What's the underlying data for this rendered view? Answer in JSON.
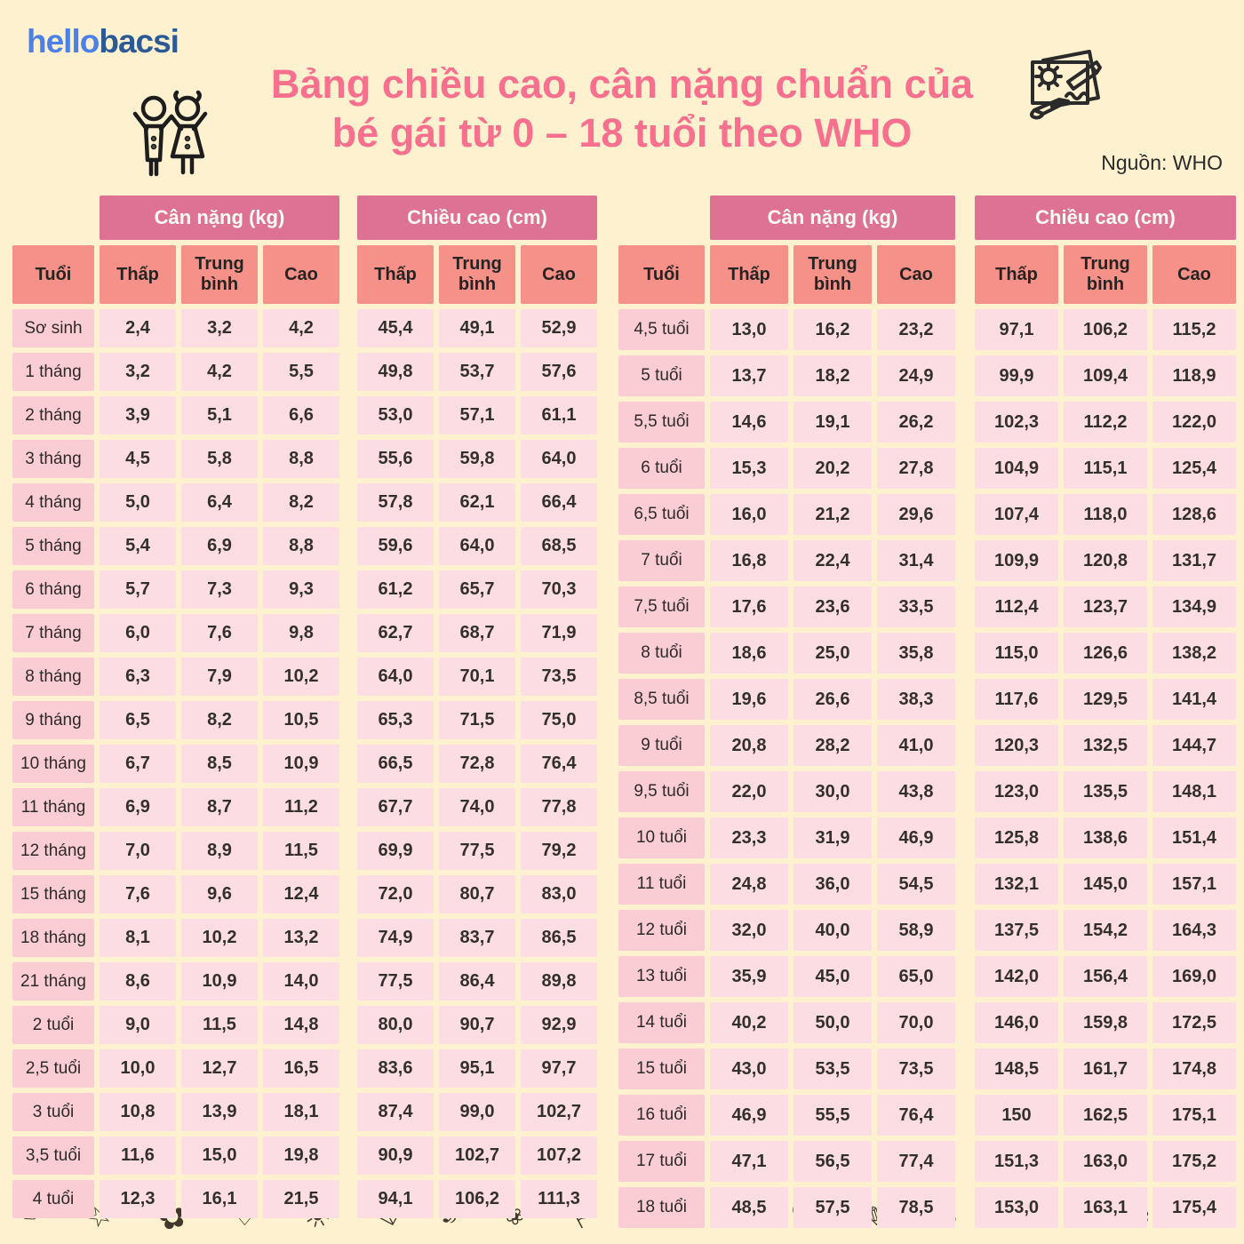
{
  "header": {
    "logo_part1": "hello",
    "logo_part2": "bacsi",
    "title_line1": "Bảng chiều cao, cân nặng chuẩn của",
    "title_line2": "bé gái từ 0 – 18 tuổi theo WHO",
    "source": "Nguồn: WHO"
  },
  "icons": [
    "children-icon",
    "drawing-paper-icon"
  ],
  "palette": {
    "background": "#fdf1d0",
    "title_pink": "#f8708e",
    "group_header": "#de7295",
    "column_header": "#f6918a",
    "age_cell": "#f9cdd3",
    "value_cell": "#fbdde3",
    "logo_light_blue": "#4b80e8",
    "logo_dark_blue": "#2b5a94"
  },
  "columns": {
    "age_label": "Tuổi",
    "weight_group_label": "Cân nặng (kg)",
    "height_group_label": "Chiều cao (cm)",
    "sub_labels": [
      "Thấp",
      "Trung bình",
      "Cao"
    ]
  },
  "tables": [
    {
      "rows": [
        [
          "Sơ sinh",
          "2,4",
          "3,2",
          "4,2",
          "45,4",
          "49,1",
          "52,9"
        ],
        [
          "1 tháng",
          "3,2",
          "4,2",
          "5,5",
          "49,8",
          "53,7",
          "57,6"
        ],
        [
          "2 tháng",
          "3,9",
          "5,1",
          "6,6",
          "53,0",
          "57,1",
          "61,1"
        ],
        [
          "3 tháng",
          "4,5",
          "5,8",
          "8,8",
          "55,6",
          "59,8",
          "64,0"
        ],
        [
          "4 tháng",
          "5,0",
          "6,4",
          "8,2",
          "57,8",
          "62,1",
          "66,4"
        ],
        [
          "5 tháng",
          "5,4",
          "6,9",
          "8,8",
          "59,6",
          "64,0",
          "68,5"
        ],
        [
          "6 tháng",
          "5,7",
          "7,3",
          "9,3",
          "61,2",
          "65,7",
          "70,3"
        ],
        [
          "7 tháng",
          "6,0",
          "7,6",
          "9,8",
          "62,7",
          "68,7",
          "71,9"
        ],
        [
          "8 tháng",
          "6,3",
          "7,9",
          "10,2",
          "64,0",
          "70,1",
          "73,5"
        ],
        [
          "9 tháng",
          "6,5",
          "8,2",
          "10,5",
          "65,3",
          "71,5",
          "75,0"
        ],
        [
          "10 tháng",
          "6,7",
          "8,5",
          "10,9",
          "66,5",
          "72,8",
          "76,4"
        ],
        [
          "11 tháng",
          "6,9",
          "8,7",
          "11,2",
          "67,7",
          "74,0",
          "77,8"
        ],
        [
          "12 tháng",
          "7,0",
          "8,9",
          "11,5",
          "69,9",
          "77,5",
          "79,2"
        ],
        [
          "15 tháng",
          "7,6",
          "9,6",
          "12,4",
          "72,0",
          "80,7",
          "83,0"
        ],
        [
          "18 tháng",
          "8,1",
          "10,2",
          "13,2",
          "74,9",
          "83,7",
          "86,5"
        ],
        [
          "21 tháng",
          "8,6",
          "10,9",
          "14,0",
          "77,5",
          "86,4",
          "89,8"
        ],
        [
          "2 tuổi",
          "9,0",
          "11,5",
          "14,8",
          "80,0",
          "90,7",
          "92,9"
        ],
        [
          "2,5 tuổi",
          "10,0",
          "12,7",
          "16,5",
          "83,6",
          "95,1",
          "97,7"
        ],
        [
          "3 tuổi",
          "10,8",
          "13,9",
          "18,1",
          "87,4",
          "99,0",
          "102,7"
        ],
        [
          "3,5 tuổi",
          "11,6",
          "15,0",
          "19,8",
          "90,9",
          "102,7",
          "107,2"
        ],
        [
          "4 tuổi",
          "12,3",
          "16,1",
          "21,5",
          "94,1",
          "106,2",
          "111,3"
        ]
      ]
    },
    {
      "rows": [
        [
          "4,5 tuổi",
          "13,0",
          "16,2",
          "23,2",
          "97,1",
          "106,2",
          "115,2"
        ],
        [
          "5 tuổi",
          "13,7",
          "18,2",
          "24,9",
          "99,9",
          "109,4",
          "118,9"
        ],
        [
          "5,5 tuổi",
          "14,6",
          "19,1",
          "26,2",
          "102,3",
          "112,2",
          "122,0"
        ],
        [
          "6 tuổi",
          "15,3",
          "20,2",
          "27,8",
          "104,9",
          "115,1",
          "125,4"
        ],
        [
          "6,5 tuổi",
          "16,0",
          "21,2",
          "29,6",
          "107,4",
          "118,0",
          "128,6"
        ],
        [
          "7 tuổi",
          "16,8",
          "22,4",
          "31,4",
          "109,9",
          "120,8",
          "131,7"
        ],
        [
          "7,5 tuổi",
          "17,6",
          "23,6",
          "33,5",
          "112,4",
          "123,7",
          "134,9"
        ],
        [
          "8 tuổi",
          "18,6",
          "25,0",
          "35,8",
          "115,0",
          "126,6",
          "138,2"
        ],
        [
          "8,5 tuổi",
          "19,6",
          "26,6",
          "38,3",
          "117,6",
          "129,5",
          "141,4"
        ],
        [
          "9 tuổi",
          "20,8",
          "28,2",
          "41,0",
          "120,3",
          "132,5",
          "144,7"
        ],
        [
          "9,5 tuổi",
          "22,0",
          "30,0",
          "43,8",
          "123,0",
          "135,5",
          "148,1"
        ],
        [
          "10 tuổi",
          "23,3",
          "31,9",
          "46,9",
          "125,8",
          "138,6",
          "151,4"
        ],
        [
          "11 tuổi",
          "24,8",
          "36,0",
          "54,5",
          "132,1",
          "145,0",
          "157,1"
        ],
        [
          "12 tuổi",
          "32,0",
          "40,0",
          "58,9",
          "137,5",
          "154,2",
          "164,3"
        ],
        [
          "13 tuổi",
          "35,9",
          "45,0",
          "65,0",
          "142,0",
          "156,4",
          "169,0"
        ],
        [
          "14 tuổi",
          "40,2",
          "50,0",
          "70,0",
          "146,0",
          "159,8",
          "172,5"
        ],
        [
          "15 tuổi",
          "43,0",
          "53,5",
          "73,5",
          "148,5",
          "161,7",
          "174,8"
        ],
        [
          "16 tuổi",
          "46,9",
          "55,5",
          "76,4",
          "150",
          "162,5",
          "175,1"
        ],
        [
          "17 tuổi",
          "47,1",
          "56,5",
          "77,4",
          "151,3",
          "163,0",
          "175,2"
        ],
        [
          "18 tuổi",
          "48,5",
          "57,5",
          "78,5",
          "153,0",
          "163,1",
          "175,4"
        ]
      ]
    }
  ],
  "footer_doodles": {
    "glyphs": [
      "✎",
      "☆",
      "✿",
      "♡",
      "☀",
      "✉",
      "♪",
      "❀",
      "⚐",
      "✂",
      "☆",
      "♡",
      "✎",
      "✿",
      "☀",
      "♪",
      "❀",
      "☆"
    ]
  }
}
